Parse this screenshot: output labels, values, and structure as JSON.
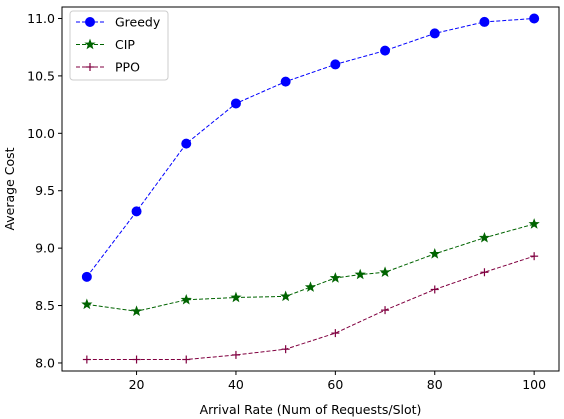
{
  "chart_data": {
    "type": "line",
    "title": "",
    "xlabel": "Arrival Rate (Num of Requests/Slot)",
    "ylabel": "Average Cost",
    "xlim": [
      5,
      105
    ],
    "ylim": [
      7.93,
      11.1
    ],
    "xticks": [
      20,
      40,
      60,
      80,
      100
    ],
    "yticks": [
      8.0,
      8.5,
      9.0,
      9.5,
      10.0,
      10.5,
      11.0
    ],
    "grid": false,
    "legend_position": "top-left",
    "series": [
      {
        "name": "Greedy",
        "color": "#0000ff",
        "marker": "circle",
        "line_style": "dashed",
        "x": [
          10,
          20,
          30,
          40,
          50,
          60,
          70,
          80,
          90,
          100
        ],
        "y": [
          8.75,
          9.32,
          9.91,
          10.26,
          10.45,
          10.6,
          10.72,
          10.87,
          10.97,
          11.0
        ]
      },
      {
        "name": "CIP",
        "color": "#006400",
        "marker": "star",
        "line_style": "dashed",
        "x": [
          10,
          20,
          30,
          40,
          50,
          55,
          60,
          65,
          70,
          80,
          90,
          100
        ],
        "y": [
          8.51,
          8.45,
          8.55,
          8.57,
          8.58,
          8.66,
          8.74,
          8.77,
          8.79,
          8.95,
          9.09,
          9.21
        ]
      },
      {
        "name": "PPO",
        "color": "#800040",
        "marker": "plus",
        "line_style": "dashed",
        "x": [
          10,
          20,
          30,
          40,
          50,
          60,
          70,
          80,
          90,
          100
        ],
        "y": [
          8.03,
          8.03,
          8.03,
          8.07,
          8.12,
          8.26,
          8.46,
          8.64,
          8.79,
          8.93
        ]
      }
    ]
  }
}
